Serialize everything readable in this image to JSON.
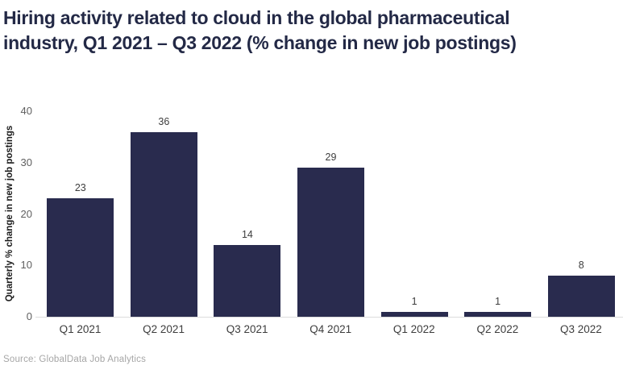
{
  "header": {
    "title": "Hiring activity related to cloud in the global pharmaceutical industry, Q1 2021 – Q3 2022 (% change in new job postings)"
  },
  "footer": {
    "source": "Source: GlobalData Job Analytics"
  },
  "colors": {
    "bar": "#292b4e",
    "title_text": "#232946",
    "tick_text": "#5f5f5f",
    "value_text": "#3d3d3d",
    "source_text": "#a6a6a6",
    "baseline": "#dcdcdc",
    "background": "#ffffff"
  },
  "chart_data": {
    "type": "bar",
    "categories": [
      "Q1 2021",
      "Q2 2021",
      "Q3 2021",
      "Q4 2021",
      "Q1 2022",
      "Q2 2022",
      "Q3 2022"
    ],
    "values": [
      23,
      36,
      14,
      29,
      1,
      1,
      8
    ],
    "title": "Hiring activity related to cloud in the global pharmaceutical industry, Q1 2021 – Q3 2022 (% change in new job postings)",
    "xlabel": "",
    "ylabel": "Quarterly % change in new job postings",
    "ylim": [
      0,
      40
    ],
    "yticks": [
      0,
      10,
      20,
      30,
      40
    ],
    "grid": false,
    "legend": false,
    "data_labels": true,
    "source": "Source: GlobalData Job Analytics"
  }
}
